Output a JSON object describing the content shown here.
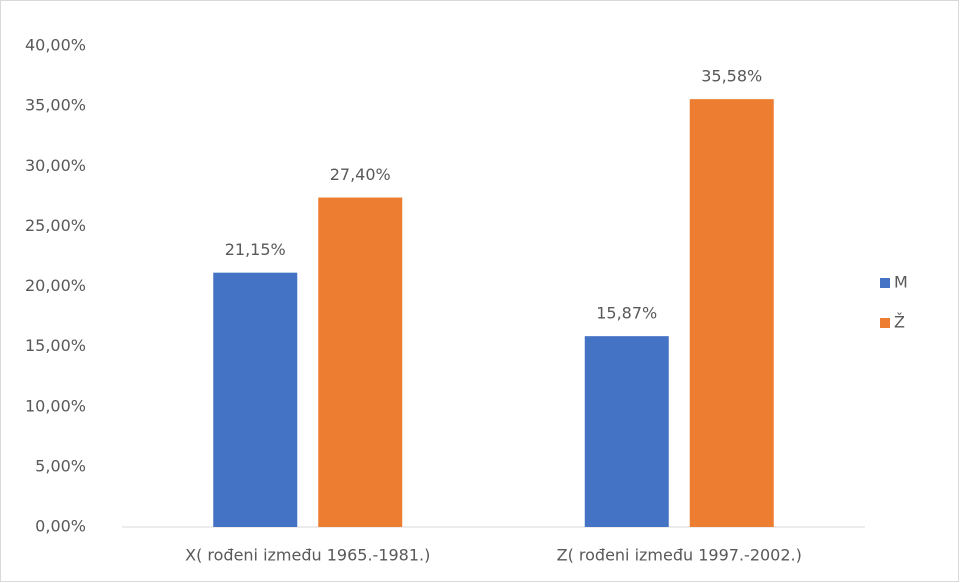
{
  "chart_data": {
    "type": "bar",
    "categories": [
      "X( rođeni između 1965.-1981.)",
      "Z( rođeni između 1997.-2002.)"
    ],
    "series": [
      {
        "name": "M",
        "color": "#4472c4",
        "values": [
          21.15,
          15.87
        ],
        "value_labels": [
          "21,15%",
          "15,87%"
        ]
      },
      {
        "name": "Ž",
        "color": "#ed7d31",
        "values": [
          27.4,
          35.58
        ],
        "value_labels": [
          "27,40%",
          "35,58%"
        ]
      }
    ],
    "ylim": [
      0,
      40
    ],
    "yticks": [
      {
        "value": 0,
        "label": "0,00%"
      },
      {
        "value": 5,
        "label": "5,00%"
      },
      {
        "value": 10,
        "label": "10,00%"
      },
      {
        "value": 15,
        "label": "15,00%"
      },
      {
        "value": 20,
        "label": "20,00%"
      },
      {
        "value": 25,
        "label": "25,00%"
      },
      {
        "value": 30,
        "label": "30,00%"
      },
      {
        "value": 35,
        "label": "35,00%"
      },
      {
        "value": 40,
        "label": "40,00%"
      }
    ],
    "grid": false,
    "legend": "right"
  }
}
